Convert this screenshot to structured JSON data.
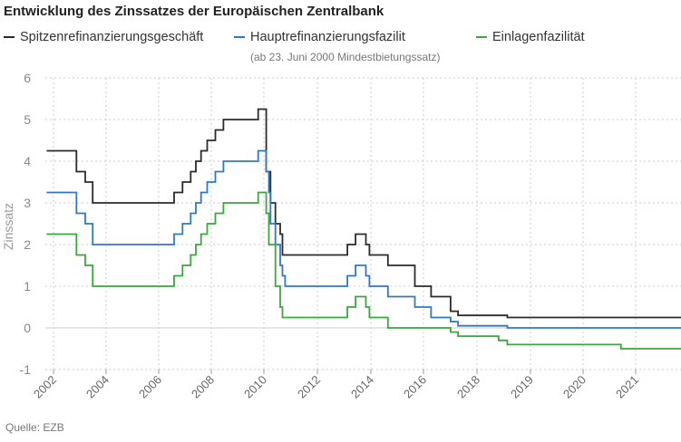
{
  "chart_data": {
    "type": "line",
    "title": "Entwicklung des Zinssatzes der Europäischen Zentralbank",
    "ylabel": "Zinssatz",
    "xlabel": "",
    "source": "Quelle: EZB",
    "legend_note": "(ab 23. Juni 2000 Mindestbietungssatz)",
    "xlim": [
      2001.85,
      2021.55
    ],
    "ylim": [
      -1,
      6
    ],
    "yticks": [
      -1,
      0,
      1,
      2,
      3,
      4,
      5,
      6
    ],
    "xticks": [
      "2002",
      "2004",
      "2006",
      "2008",
      "2010",
      "2012",
      "2014",
      "2016",
      "2018",
      "2019",
      "2020",
      "2021"
    ],
    "grid": true,
    "legend_position": "top",
    "series": [
      {
        "name": "Spitzenrefinanzierungsgeschäft",
        "color": "#2b2b2b",
        "points": [
          [
            2002.0,
            4.25
          ],
          [
            2002.92,
            4.25
          ],
          [
            2002.92,
            3.75
          ],
          [
            2003.19,
            3.75
          ],
          [
            2003.19,
            3.5
          ],
          [
            2003.42,
            3.5
          ],
          [
            2003.42,
            3.0
          ],
          [
            2005.93,
            3.0
          ],
          [
            2005.93,
            3.25
          ],
          [
            2006.19,
            3.25
          ],
          [
            2006.19,
            3.5
          ],
          [
            2006.44,
            3.5
          ],
          [
            2006.44,
            3.75
          ],
          [
            2006.6,
            3.75
          ],
          [
            2006.6,
            4.0
          ],
          [
            2006.76,
            4.0
          ],
          [
            2006.76,
            4.25
          ],
          [
            2006.95,
            4.25
          ],
          [
            2006.95,
            4.5
          ],
          [
            2007.2,
            4.5
          ],
          [
            2007.2,
            4.75
          ],
          [
            2007.45,
            4.75
          ],
          [
            2007.45,
            5.0
          ],
          [
            2008.52,
            5.0
          ],
          [
            2008.52,
            5.25
          ],
          [
            2008.77,
            5.25
          ],
          [
            2008.77,
            3.75
          ],
          [
            2008.9,
            3.75
          ],
          [
            2008.9,
            3.0
          ],
          [
            2009.05,
            3.0
          ],
          [
            2009.05,
            2.5
          ],
          [
            2009.2,
            2.5
          ],
          [
            2009.2,
            2.25
          ],
          [
            2009.27,
            2.25
          ],
          [
            2009.27,
            1.75
          ],
          [
            2011.27,
            1.75
          ],
          [
            2011.27,
            2.0
          ],
          [
            2011.52,
            2.0
          ],
          [
            2011.52,
            2.25
          ],
          [
            2011.84,
            2.25
          ],
          [
            2011.84,
            2.0
          ],
          [
            2011.95,
            2.0
          ],
          [
            2011.95,
            1.75
          ],
          [
            2012.52,
            1.75
          ],
          [
            2012.52,
            1.5
          ],
          [
            2013.35,
            1.5
          ],
          [
            2013.35,
            1.0
          ],
          [
            2013.85,
            1.0
          ],
          [
            2013.85,
            0.75
          ],
          [
            2014.45,
            0.75
          ],
          [
            2014.45,
            0.4
          ],
          [
            2014.68,
            0.4
          ],
          [
            2014.68,
            0.3
          ],
          [
            2015.93,
            0.3
          ],
          [
            2015.93,
            0.3
          ],
          [
            2016.2,
            0.3
          ],
          [
            2016.2,
            0.25
          ],
          [
            2021.55,
            0.25
          ]
        ]
      },
      {
        "name": "Hauptrefinanzierungsfazilit",
        "color": "#2f78c4",
        "points": [
          [
            2002.0,
            3.25
          ],
          [
            2002.92,
            3.25
          ],
          [
            2002.92,
            2.75
          ],
          [
            2003.19,
            2.75
          ],
          [
            2003.19,
            2.5
          ],
          [
            2003.42,
            2.5
          ],
          [
            2003.42,
            2.0
          ],
          [
            2005.93,
            2.0
          ],
          [
            2005.93,
            2.25
          ],
          [
            2006.19,
            2.25
          ],
          [
            2006.19,
            2.5
          ],
          [
            2006.44,
            2.5
          ],
          [
            2006.44,
            2.75
          ],
          [
            2006.6,
            2.75
          ],
          [
            2006.6,
            3.0
          ],
          [
            2006.76,
            3.0
          ],
          [
            2006.76,
            3.25
          ],
          [
            2006.95,
            3.25
          ],
          [
            2006.95,
            3.5
          ],
          [
            2007.2,
            3.5
          ],
          [
            2007.2,
            3.75
          ],
          [
            2007.45,
            3.75
          ],
          [
            2007.45,
            4.0
          ],
          [
            2008.52,
            4.0
          ],
          [
            2008.52,
            4.25
          ],
          [
            2008.77,
            4.25
          ],
          [
            2008.77,
            3.75
          ],
          [
            2008.85,
            3.75
          ],
          [
            2008.85,
            3.25
          ],
          [
            2008.9,
            3.25
          ],
          [
            2008.9,
            2.5
          ],
          [
            2009.05,
            2.5
          ],
          [
            2009.05,
            2.0
          ],
          [
            2009.2,
            2.0
          ],
          [
            2009.2,
            1.5
          ],
          [
            2009.27,
            1.5
          ],
          [
            2009.27,
            1.25
          ],
          [
            2009.35,
            1.25
          ],
          [
            2009.35,
            1.0
          ],
          [
            2011.27,
            1.0
          ],
          [
            2011.27,
            1.25
          ],
          [
            2011.52,
            1.25
          ],
          [
            2011.52,
            1.5
          ],
          [
            2011.84,
            1.5
          ],
          [
            2011.84,
            1.25
          ],
          [
            2011.95,
            1.25
          ],
          [
            2011.95,
            1.0
          ],
          [
            2012.52,
            1.0
          ],
          [
            2012.52,
            0.75
          ],
          [
            2013.35,
            0.75
          ],
          [
            2013.35,
            0.5
          ],
          [
            2013.85,
            0.5
          ],
          [
            2013.85,
            0.25
          ],
          [
            2014.45,
            0.25
          ],
          [
            2014.45,
            0.15
          ],
          [
            2014.68,
            0.15
          ],
          [
            2014.68,
            0.05
          ],
          [
            2016.2,
            0.05
          ],
          [
            2016.2,
            0.0
          ],
          [
            2021.55,
            0.0
          ]
        ]
      },
      {
        "name": "Einlagenfazilität",
        "color": "#3aa83a",
        "points": [
          [
            2002.0,
            2.25
          ],
          [
            2002.92,
            2.25
          ],
          [
            2002.92,
            1.75
          ],
          [
            2003.19,
            1.75
          ],
          [
            2003.19,
            1.5
          ],
          [
            2003.42,
            1.5
          ],
          [
            2003.42,
            1.0
          ],
          [
            2005.93,
            1.0
          ],
          [
            2005.93,
            1.25
          ],
          [
            2006.19,
            1.25
          ],
          [
            2006.19,
            1.5
          ],
          [
            2006.44,
            1.5
          ],
          [
            2006.44,
            1.75
          ],
          [
            2006.6,
            1.75
          ],
          [
            2006.6,
            2.0
          ],
          [
            2006.76,
            2.0
          ],
          [
            2006.76,
            2.25
          ],
          [
            2006.95,
            2.25
          ],
          [
            2006.95,
            2.5
          ],
          [
            2007.2,
            2.5
          ],
          [
            2007.2,
            2.75
          ],
          [
            2007.45,
            2.75
          ],
          [
            2007.45,
            3.0
          ],
          [
            2008.52,
            3.0
          ],
          [
            2008.52,
            3.25
          ],
          [
            2008.77,
            3.25
          ],
          [
            2008.77,
            2.75
          ],
          [
            2008.85,
            2.75
          ],
          [
            2008.85,
            2.0
          ],
          [
            2008.97,
            2.0
          ],
          [
            2008.97,
            2.0
          ],
          [
            2009.05,
            2.0
          ],
          [
            2009.05,
            1.0
          ],
          [
            2009.2,
            1.0
          ],
          [
            2009.2,
            0.5
          ],
          [
            2009.27,
            0.5
          ],
          [
            2009.27,
            0.25
          ],
          [
            2011.27,
            0.25
          ],
          [
            2011.27,
            0.5
          ],
          [
            2011.52,
            0.5
          ],
          [
            2011.52,
            0.75
          ],
          [
            2011.84,
            0.75
          ],
          [
            2011.84,
            0.5
          ],
          [
            2011.95,
            0.5
          ],
          [
            2011.95,
            0.25
          ],
          [
            2012.52,
            0.25
          ],
          [
            2012.52,
            0.0
          ],
          [
            2014.45,
            0.0
          ],
          [
            2014.45,
            -0.1
          ],
          [
            2014.68,
            -0.1
          ],
          [
            2014.68,
            -0.2
          ],
          [
            2015.93,
            -0.2
          ],
          [
            2015.93,
            -0.3
          ],
          [
            2016.2,
            -0.3
          ],
          [
            2016.2,
            -0.4
          ],
          [
            2019.7,
            -0.4
          ],
          [
            2019.7,
            -0.5
          ],
          [
            2021.55,
            -0.5
          ]
        ]
      }
    ]
  }
}
